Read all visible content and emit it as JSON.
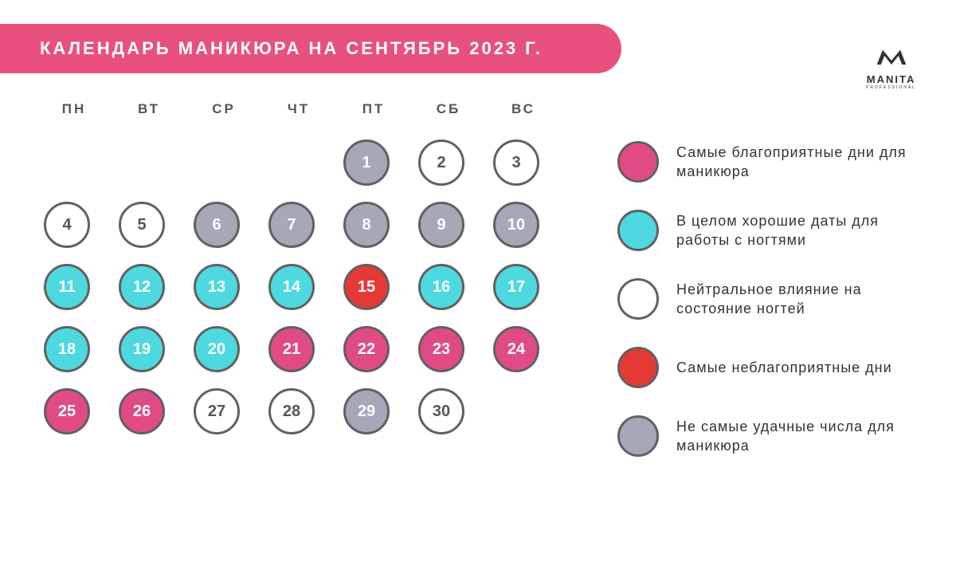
{
  "title": "КАЛЕНДАРЬ МАНИКЮРА НА СЕНТЯБРЬ 2023 Г.",
  "logo": {
    "name": "MANITA",
    "sub": "PROFESSIONAL"
  },
  "colors": {
    "title_bg": "#e8517e",
    "pink": "#e14b85",
    "cyan": "#4dd9df",
    "white": "#ffffff",
    "red": "#e53935",
    "grey": "#a6a8b8",
    "border": "#616161",
    "text_dark": "#555555",
    "text_light": "#ffffff"
  },
  "weekdays": [
    "ПН",
    "ВТ",
    "СР",
    "ЧТ",
    "ПТ",
    "СБ",
    "ВС"
  ],
  "first_day_col": 4,
  "days": [
    {
      "n": 1,
      "t": "grey"
    },
    {
      "n": 2,
      "t": "white"
    },
    {
      "n": 3,
      "t": "white"
    },
    {
      "n": 4,
      "t": "white"
    },
    {
      "n": 5,
      "t": "white"
    },
    {
      "n": 6,
      "t": "grey"
    },
    {
      "n": 7,
      "t": "grey"
    },
    {
      "n": 8,
      "t": "grey"
    },
    {
      "n": 9,
      "t": "grey"
    },
    {
      "n": 10,
      "t": "grey"
    },
    {
      "n": 11,
      "t": "cyan"
    },
    {
      "n": 12,
      "t": "cyan"
    },
    {
      "n": 13,
      "t": "cyan"
    },
    {
      "n": 14,
      "t": "cyan"
    },
    {
      "n": 15,
      "t": "red"
    },
    {
      "n": 16,
      "t": "cyan"
    },
    {
      "n": 17,
      "t": "cyan"
    },
    {
      "n": 18,
      "t": "cyan"
    },
    {
      "n": 19,
      "t": "cyan"
    },
    {
      "n": 20,
      "t": "cyan"
    },
    {
      "n": 21,
      "t": "pink"
    },
    {
      "n": 22,
      "t": "pink"
    },
    {
      "n": 23,
      "t": "pink"
    },
    {
      "n": 24,
      "t": "pink"
    },
    {
      "n": 25,
      "t": "pink"
    },
    {
      "n": 26,
      "t": "pink"
    },
    {
      "n": 27,
      "t": "white"
    },
    {
      "n": 28,
      "t": "white"
    },
    {
      "n": 29,
      "t": "grey"
    },
    {
      "n": 30,
      "t": "white"
    }
  ],
  "day_styles": {
    "pink": {
      "bg": "#e14b85",
      "fg": "#ffffff"
    },
    "cyan": {
      "bg": "#4dd9df",
      "fg": "#ffffff"
    },
    "white": {
      "bg": "#ffffff",
      "fg": "#555555"
    },
    "red": {
      "bg": "#e53935",
      "fg": "#ffffff"
    },
    "grey": {
      "bg": "#a6a8b8",
      "fg": "#ffffff"
    }
  },
  "legend": [
    {
      "t": "pink",
      "label": "Самые благоприятные дни для маникюра"
    },
    {
      "t": "cyan",
      "label": "В целом хорошие даты для работы с ногтями"
    },
    {
      "t": "white",
      "label": "Нейтральное влияние на состояние ногтей"
    },
    {
      "t": "red",
      "label": "Самые неблагоприятные дни"
    },
    {
      "t": "grey",
      "label": "Не самые удачные числа для маникюра"
    }
  ]
}
